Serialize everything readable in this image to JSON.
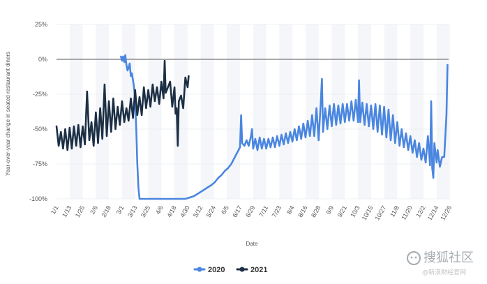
{
  "chart_data": {
    "type": "line",
    "title": "",
    "xlabel": "Date",
    "ylabel": "Year-over-year change in seated restaurant diners",
    "ylim": [
      -100,
      25
    ],
    "yticks": [
      "25%",
      "0%",
      "-25%",
      "-50%",
      "-75%",
      "-100%"
    ],
    "ytick_values": [
      25,
      0,
      -25,
      -50,
      -75,
      -100
    ],
    "xticks": [
      "1/1",
      "1/13",
      "1/25",
      "2/6",
      "2/18",
      "3/1",
      "3/13",
      "3/25",
      "4/6",
      "4/18",
      "4/30",
      "5/12",
      "5/24",
      "6/5",
      "6/17",
      "6/29",
      "7/11",
      "7/23",
      "8/4",
      "8/16",
      "8/28",
      "9/9",
      "9/21",
      "10/3",
      "10/15",
      "10/27",
      "11/8",
      "11/20",
      "12/2",
      "12/14",
      "12/26"
    ],
    "legend": "bottom-center",
    "grid": "vertical-bands",
    "series": [
      {
        "name": "2020",
        "color": "#4a86e0",
        "points": [
          [
            59,
            2
          ],
          [
            60,
            -1
          ],
          [
            61,
            2
          ],
          [
            62,
            -2
          ],
          [
            63,
            3
          ],
          [
            64,
            -4
          ],
          [
            65,
            -8
          ],
          [
            66,
            -6
          ],
          [
            67,
            -3
          ],
          [
            68,
            -12
          ],
          [
            69,
            -10
          ],
          [
            70,
            -15
          ],
          [
            71,
            -20
          ],
          [
            72,
            -30
          ],
          [
            73,
            -50
          ],
          [
            74,
            -75
          ],
          [
            75,
            -92
          ],
          [
            76,
            -100
          ],
          [
            80,
            -100
          ],
          [
            90,
            -100
          ],
          [
            100,
            -100
          ],
          [
            110,
            -100
          ],
          [
            118,
            -100
          ],
          [
            122,
            -99
          ],
          [
            126,
            -98
          ],
          [
            130,
            -96
          ],
          [
            134,
            -94
          ],
          [
            138,
            -92
          ],
          [
            142,
            -90
          ],
          [
            145,
            -88
          ],
          [
            148,
            -85
          ],
          [
            151,
            -83
          ],
          [
            154,
            -80
          ],
          [
            157,
            -78
          ],
          [
            160,
            -75
          ],
          [
            162,
            -72
          ],
          [
            164,
            -69
          ],
          [
            166,
            -66
          ],
          [
            168,
            -63
          ],
          [
            169,
            -40
          ],
          [
            170,
            -60
          ],
          [
            172,
            -62
          ],
          [
            174,
            -58
          ],
          [
            176,
            -62
          ],
          [
            178,
            -55
          ],
          [
            179,
            -50
          ],
          [
            180,
            -64
          ],
          [
            182,
            -57
          ],
          [
            184,
            -65
          ],
          [
            186,
            -56
          ],
          [
            188,
            -64
          ],
          [
            190,
            -57
          ],
          [
            192,
            -64
          ],
          [
            194,
            -57
          ],
          [
            196,
            -63
          ],
          [
            198,
            -56
          ],
          [
            200,
            -63
          ],
          [
            202,
            -55
          ],
          [
            204,
            -62
          ],
          [
            206,
            -54
          ],
          [
            208,
            -61
          ],
          [
            210,
            -53
          ],
          [
            212,
            -60
          ],
          [
            214,
            -52
          ],
          [
            216,
            -59
          ],
          [
            218,
            -50
          ],
          [
            220,
            -58
          ],
          [
            222,
            -48
          ],
          [
            224,
            -57
          ],
          [
            226,
            -46
          ],
          [
            228,
            -56
          ],
          [
            230,
            -44
          ],
          [
            232,
            -55
          ],
          [
            234,
            -40
          ],
          [
            236,
            -55
          ],
          [
            238,
            -35
          ],
          [
            240,
            -58
          ],
          [
            242,
            -30
          ],
          [
            243,
            -14
          ],
          [
            244,
            -52
          ],
          [
            246,
            -35
          ],
          [
            248,
            -50
          ],
          [
            250,
            -33
          ],
          [
            252,
            -48
          ],
          [
            254,
            -32
          ],
          [
            256,
            -47
          ],
          [
            258,
            -33
          ],
          [
            260,
            -46
          ],
          [
            262,
            -32
          ],
          [
            264,
            -45
          ],
          [
            266,
            -32
          ],
          [
            268,
            -44
          ],
          [
            270,
            -30
          ],
          [
            272,
            -44
          ],
          [
            274,
            -29
          ],
          [
            276,
            -45
          ],
          [
            277,
            -15
          ],
          [
            278,
            -45
          ],
          [
            280,
            -31
          ],
          [
            282,
            -47
          ],
          [
            284,
            -32
          ],
          [
            286,
            -48
          ],
          [
            288,
            -33
          ],
          [
            290,
            -50
          ],
          [
            292,
            -32
          ],
          [
            294,
            -52
          ],
          [
            296,
            -33
          ],
          [
            298,
            -54
          ],
          [
            300,
            -34
          ],
          [
            302,
            -56
          ],
          [
            304,
            -36
          ],
          [
            306,
            -58
          ],
          [
            308,
            -40
          ],
          [
            310,
            -60
          ],
          [
            312,
            -45
          ],
          [
            314,
            -62
          ],
          [
            316,
            -50
          ],
          [
            318,
            -63
          ],
          [
            320,
            -53
          ],
          [
            322,
            -65
          ],
          [
            324,
            -55
          ],
          [
            326,
            -67
          ],
          [
            328,
            -58
          ],
          [
            330,
            -70
          ],
          [
            332,
            -60
          ],
          [
            334,
            -72
          ],
          [
            336,
            -64
          ],
          [
            338,
            -74
          ],
          [
            340,
            -55
          ],
          [
            342,
            -76
          ],
          [
            343,
            -30
          ],
          [
            344,
            -78
          ],
          [
            345,
            -85
          ],
          [
            346,
            -60
          ],
          [
            348,
            -74
          ],
          [
            349,
            -65
          ],
          [
            351,
            -77
          ],
          [
            353,
            -70
          ],
          [
            355,
            -70
          ],
          [
            357,
            -40
          ],
          [
            358,
            -4
          ]
        ]
      },
      {
        "name": "2021",
        "color": "#1c2f45",
        "points": [
          [
            0,
            -48
          ],
          [
            2,
            -62
          ],
          [
            4,
            -52
          ],
          [
            6,
            -64
          ],
          [
            8,
            -50
          ],
          [
            10,
            -65
          ],
          [
            12,
            -49
          ],
          [
            14,
            -64
          ],
          [
            16,
            -48
          ],
          [
            18,
            -62
          ],
          [
            20,
            -47
          ],
          [
            22,
            -63
          ],
          [
            24,
            -48
          ],
          [
            26,
            -61
          ],
          [
            28,
            -23
          ],
          [
            30,
            -58
          ],
          [
            32,
            -45
          ],
          [
            34,
            -62
          ],
          [
            36,
            -38
          ],
          [
            38,
            -60
          ],
          [
            40,
            -35
          ],
          [
            42,
            -57
          ],
          [
            44,
            -18
          ],
          [
            46,
            -55
          ],
          [
            48,
            -30
          ],
          [
            50,
            -52
          ],
          [
            52,
            -28
          ],
          [
            54,
            -50
          ],
          [
            56,
            -34
          ],
          [
            58,
            -47
          ],
          [
            60,
            -30
          ],
          [
            62,
            -45
          ],
          [
            64,
            -35
          ],
          [
            66,
            -44
          ],
          [
            68,
            -28
          ],
          [
            70,
            -42
          ],
          [
            72,
            -22
          ],
          [
            74,
            -40
          ],
          [
            76,
            -27
          ],
          [
            78,
            -40
          ],
          [
            80,
            -20
          ],
          [
            82,
            -35
          ],
          [
            84,
            -22
          ],
          [
            86,
            -34
          ],
          [
            88,
            -18
          ],
          [
            90,
            -30
          ],
          [
            92,
            -20
          ],
          [
            94,
            -32
          ],
          [
            96,
            -16
          ],
          [
            98,
            -28
          ],
          [
            99,
            -1
          ],
          [
            100,
            -24
          ],
          [
            102,
            -20
          ],
          [
            104,
            -16
          ],
          [
            106,
            -34
          ],
          [
            108,
            -20
          ],
          [
            109,
            -39
          ],
          [
            110,
            -35
          ],
          [
            111,
            -62
          ],
          [
            112,
            -30
          ],
          [
            114,
            -26
          ],
          [
            116,
            -35
          ],
          [
            118,
            -13
          ],
          [
            120,
            -20
          ],
          [
            121,
            -12
          ]
        ]
      }
    ]
  },
  "watermark": {
    "line1": "搜狐社区",
    "line2": "@新浪财经官网"
  }
}
